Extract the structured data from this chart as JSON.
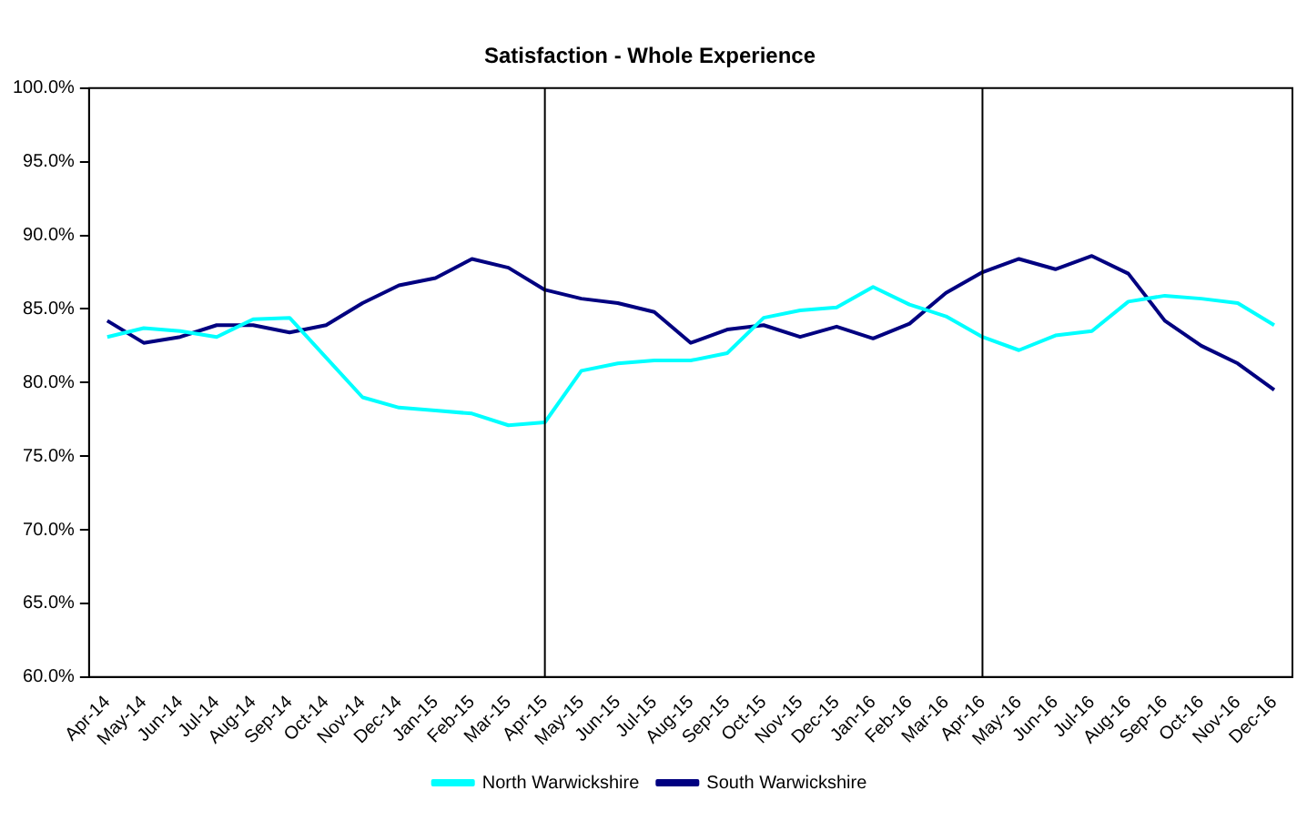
{
  "chart_data": {
    "type": "line",
    "title": "Satisfaction - Whole Experience",
    "categories": [
      "Apr-14",
      "May-14",
      "Jun-14",
      "Jul-14",
      "Aug-14",
      "Sep-14",
      "Oct-14",
      "Nov-14",
      "Dec-14",
      "Jan-15",
      "Feb-15",
      "Mar-15",
      "Apr-15",
      "May-15",
      "Jun-15",
      "Jul-15",
      "Aug-15",
      "Sep-15",
      "Oct-15",
      "Nov-15",
      "Dec-15",
      "Jan-16",
      "Feb-16",
      "Mar-16",
      "Apr-16",
      "May-16",
      "Jun-16",
      "Jul-16",
      "Aug-16",
      "Sep-16",
      "Oct-16",
      "Nov-16",
      "Dec-16"
    ],
    "series": [
      {
        "name": "North Warwickshire",
        "color": "#00ffff",
        "values": [
          83.1,
          83.7,
          83.5,
          83.1,
          84.3,
          84.4,
          81.7,
          79.0,
          78.3,
          78.1,
          77.9,
          77.1,
          77.3,
          80.8,
          81.3,
          81.5,
          81.5,
          82.0,
          84.4,
          84.9,
          85.1,
          86.5,
          85.3,
          84.5,
          83.1,
          82.2,
          83.2,
          83.5,
          85.5,
          85.9,
          85.7,
          85.4,
          83.9
        ]
      },
      {
        "name": "South Warwickshire",
        "color": "#000080",
        "values": [
          84.2,
          82.7,
          83.1,
          83.9,
          83.9,
          83.4,
          83.9,
          85.4,
          86.6,
          87.1,
          88.4,
          87.8,
          86.3,
          85.7,
          85.4,
          84.8,
          82.7,
          83.6,
          83.9,
          83.1,
          83.8,
          83.0,
          84.0,
          86.1,
          87.5,
          88.4,
          87.7,
          88.6,
          87.4,
          84.2,
          82.5,
          81.3,
          79.5
        ]
      }
    ],
    "ylim": [
      60,
      100
    ],
    "yticks": [
      {
        "value": 60,
        "label": "60.0%"
      },
      {
        "value": 65,
        "label": "65.0%"
      },
      {
        "value": 70,
        "label": "70.0%"
      },
      {
        "value": 75,
        "label": "75.0%"
      },
      {
        "value": 80,
        "label": "80.0%"
      },
      {
        "value": 85,
        "label": "85.0%"
      },
      {
        "value": 90,
        "label": "90.0%"
      },
      {
        "value": 95,
        "label": "95.0%"
      },
      {
        "value": 100,
        "label": "100.0%"
      }
    ],
    "ref_lines": [
      {
        "axis": "x",
        "value": "Apr-15",
        "color": "#000000"
      },
      {
        "axis": "x",
        "value": "Apr-16",
        "color": "#000000"
      }
    ],
    "grid": false,
    "legend": "bottom",
    "marker": "none",
    "line_style": "solid"
  }
}
